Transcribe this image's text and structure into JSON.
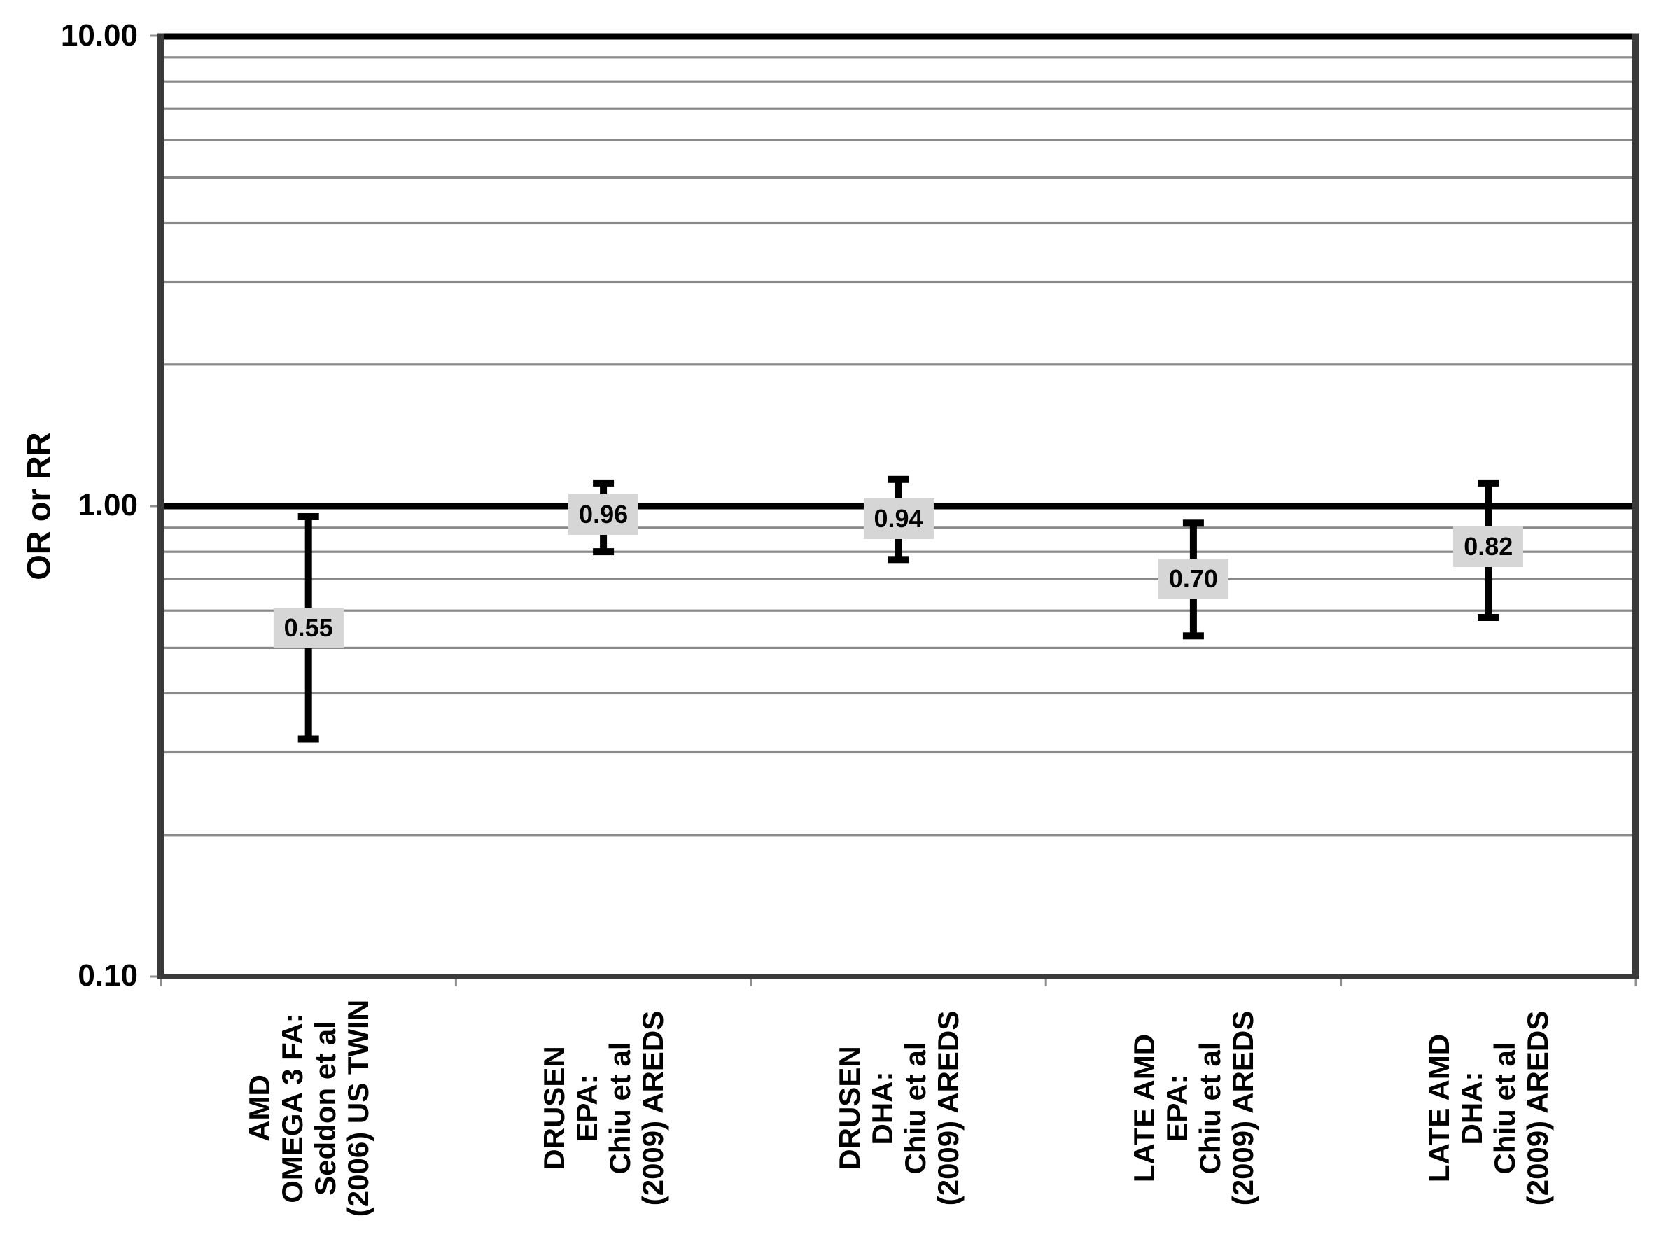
{
  "figure": {
    "background": "#ffffff",
    "text_color": "#000000"
  },
  "chart_data": {
    "type": "scatter",
    "subtype": "forest-plot-errorbars",
    "title": "",
    "xlabel": "",
    "ylabel": "OR or RR",
    "yscale": "log",
    "ylim": [
      0.1,
      10.0
    ],
    "ytick_labels": [
      "10.00",
      "1.00",
      "0.10"
    ],
    "ytick_values": [
      10.0,
      1.0,
      0.1
    ],
    "reference_line_value": 1.0,
    "grid": "horizontal log minor gridlines (0.2-0.9, 2-9)",
    "legend_position": "none",
    "categories": [
      {
        "lines": [
          "AMD",
          "OMEGA 3 FA:",
          "Seddon et al",
          "(2006) US TWIN"
        ]
      },
      {
        "lines": [
          "DRUSEN",
          "EPA:",
          "Chiu et al",
          "(2009) AREDS"
        ]
      },
      {
        "lines": [
          "DRUSEN",
          "DHA:",
          "Chiu et al",
          "(2009) AREDS"
        ]
      },
      {
        "lines": [
          "LATE AMD",
          "EPA:",
          "Chiu et al",
          "(2009) AREDS"
        ]
      },
      {
        "lines": [
          "LATE AMD",
          "DHA:",
          "Chiu et al",
          "(2009) AREDS"
        ]
      }
    ],
    "points": [
      {
        "label": "0.55",
        "value": 0.55,
        "ci_lower": 0.32,
        "ci_upper": 0.95
      },
      {
        "label": "0.96",
        "value": 0.96,
        "ci_lower": 0.8,
        "ci_upper": 1.12
      },
      {
        "label": "0.94",
        "value": 0.94,
        "ci_lower": 0.77,
        "ci_upper": 1.14
      },
      {
        "label": "0.70",
        "value": 0.7,
        "ci_lower": 0.53,
        "ci_upper": 0.92
      },
      {
        "label": "0.82",
        "value": 0.82,
        "ci_lower": 0.58,
        "ci_upper": 1.12
      }
    ],
    "colors": {
      "error_bar": "#000000",
      "reference_line": "#000000",
      "top_frame_line": "#000000",
      "frame": "#3a3a3a",
      "minor_gridline": "#8a8a8a",
      "tick": "#8f8f8f",
      "label_box_fill": "#d6d6d6",
      "label_text": "#000000"
    }
  }
}
